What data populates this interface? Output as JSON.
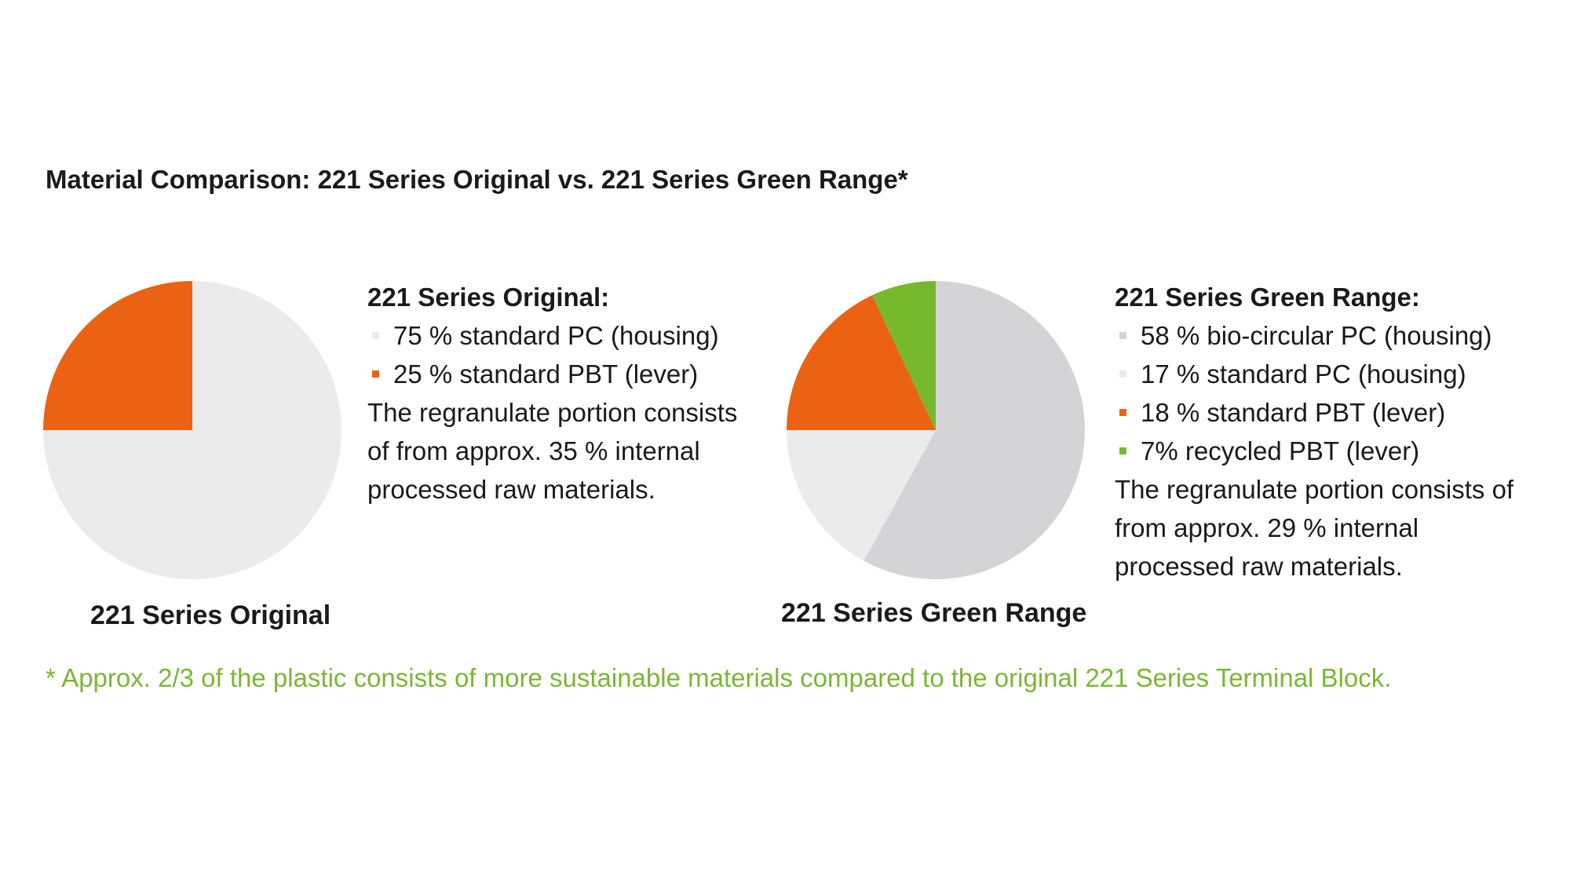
{
  "title": "Material Comparison: 221 Series Original vs. 221 Series Green Range*",
  "chart_data": [
    {
      "type": "pie",
      "caption": "221 Series Original",
      "legend_title": "221 Series Original:",
      "slices": [
        {
          "label": "75 % standard PC (housing)",
          "value": 75,
          "color": "#ebebeb"
        },
        {
          "label": "25 % standard PBT (lever)",
          "value": 25,
          "color": "#ec6213"
        }
      ],
      "notes": [
        "The regranulate portion consists",
        "of from approx. 35 % internal",
        "processed raw materials."
      ]
    },
    {
      "type": "pie",
      "caption": "221 Series Green Range",
      "legend_title": "221 Series Green Range:",
      "slices": [
        {
          "label": "58 % bio-circular PC (housing)",
          "value": 58,
          "color": "#d4d4d7"
        },
        {
          "label": "17 % standard PC (housing)",
          "value": 17,
          "color": "#ebebeb"
        },
        {
          "label": "18 % standard PBT (lever)",
          "value": 18,
          "color": "#ec6213"
        },
        {
          "label": "7% recycled PBT (lever)",
          "value": 7,
          "color": "#78b82c"
        }
      ],
      "notes": [
        "The regranulate portion consists of",
        "from approx. 29 % internal",
        "processed raw materials."
      ]
    }
  ],
  "footnote": "* Approx. 2/3 of the plastic consists of more sustainable materials compared to the original 221 Series Terminal Block."
}
